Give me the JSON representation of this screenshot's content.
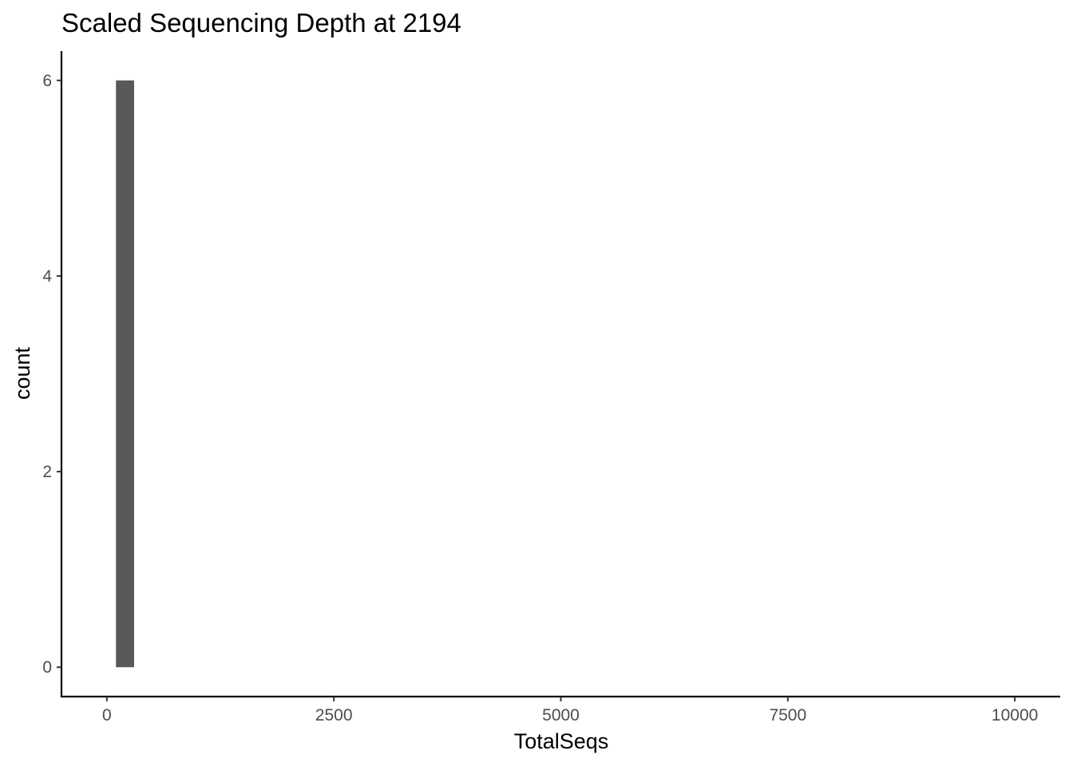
{
  "chart_data": {
    "type": "bar",
    "title": "Scaled Sequencing Depth at 2194",
    "xlabel": "TotalSeqs",
    "ylabel": "count",
    "xlim": [
      -500,
      10500
    ],
    "ylim": [
      -0.3,
      6.3
    ],
    "x_ticks": [
      0,
      2500,
      5000,
      7500,
      10000
    ],
    "y_ticks": [
      0,
      2,
      4,
      6
    ],
    "bins": [
      {
        "x_start": 100,
        "x_end": 300,
        "count": 6
      }
    ],
    "bar_color": "#595959",
    "grid": false,
    "legend": "none"
  }
}
